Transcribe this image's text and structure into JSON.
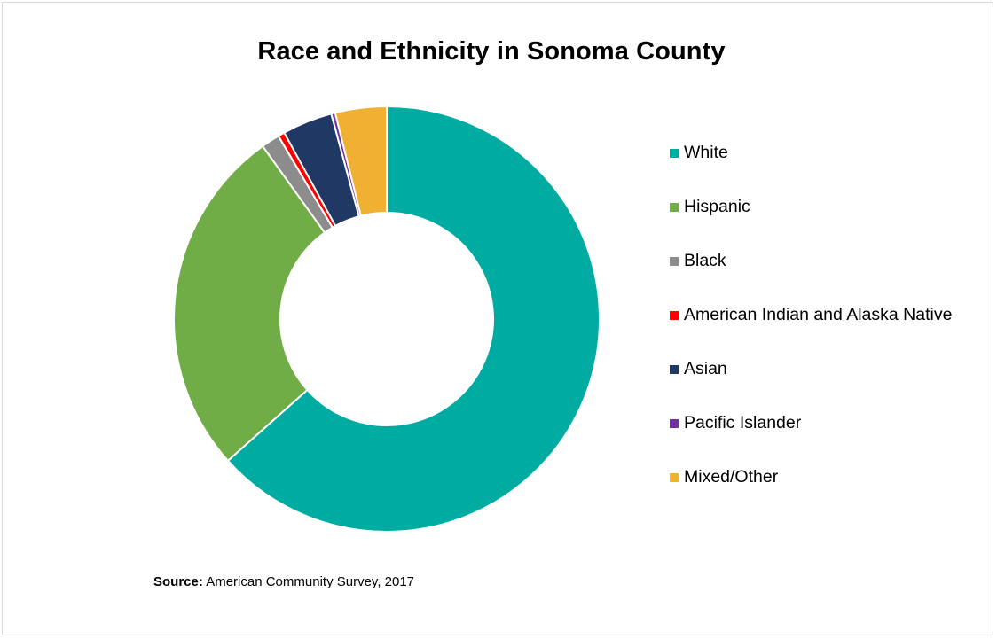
{
  "chart_data": {
    "type": "pie",
    "variant": "donut",
    "title": "Race and Ethnicity in Sonoma County",
    "categories": [
      "White",
      "Hispanic",
      "Black",
      "American Indian and Alaska Native",
      "Asian",
      "Pacific Islander",
      "Mixed/Other"
    ],
    "values": [
      63.4,
      26.7,
      1.4,
      0.5,
      3.8,
      0.3,
      3.9
    ],
    "unit": "%",
    "colors": [
      "#00aba2",
      "#70ad47",
      "#8c8c8c",
      "#ff0000",
      "#1f3864",
      "#7030a0",
      "#f0b132"
    ],
    "legend_position": "right"
  },
  "source": {
    "label": "Source:",
    "text": "American Community Survey, 2017"
  }
}
